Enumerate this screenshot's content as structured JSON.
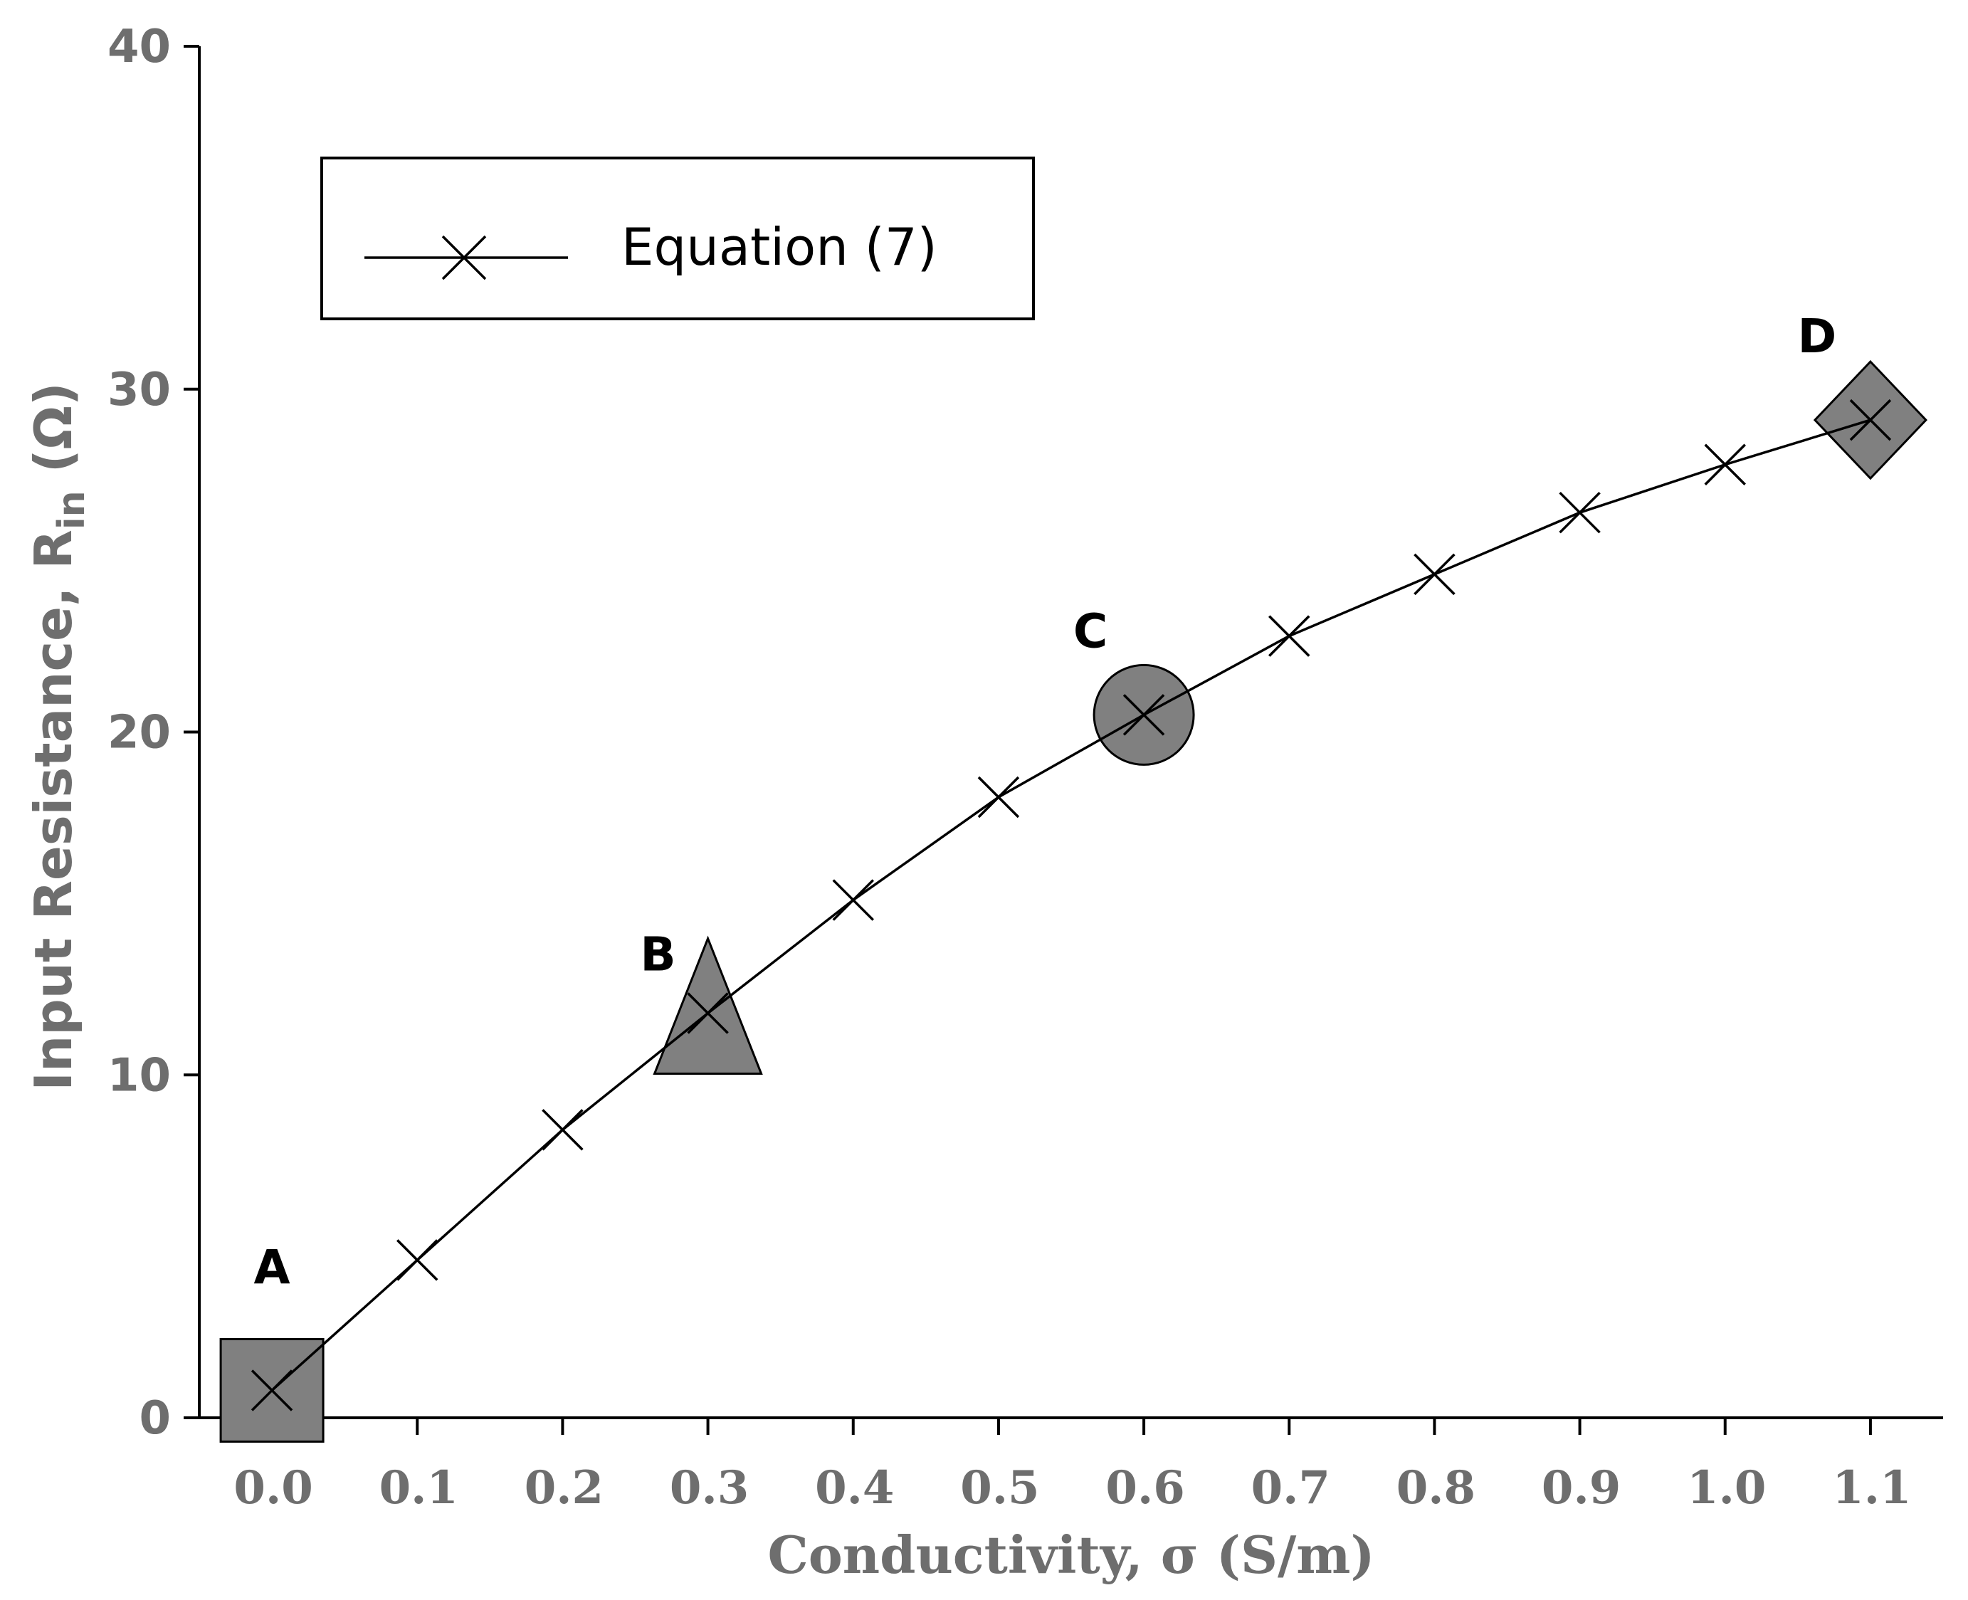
{
  "chart_data": {
    "type": "line",
    "title": "",
    "xlabel": "Conductivity, σ (S/m)",
    "ylabel": {
      "main": "Input Resistance, R",
      "subscript": "in",
      "unit": " (Ω)"
    },
    "xlim": [
      -0.05,
      1.15
    ],
    "ylim": [
      0,
      40
    ],
    "x_ticks": [
      "0.0",
      "0.1",
      "0.2",
      "0.3",
      "0.4",
      "0.5",
      "0.6",
      "0.7",
      "0.8",
      "0.9",
      "1.0",
      "1.1"
    ],
    "y_ticks": [
      "0",
      "10",
      "20",
      "30",
      "40"
    ],
    "grid": false,
    "legend_position": "top-left",
    "series": [
      {
        "name": "Equation (7)",
        "marker": "x",
        "color": "#000000",
        "x": [
          0.0,
          0.1,
          0.2,
          0.3,
          0.4,
          0.5,
          0.6,
          0.7,
          0.8,
          0.9,
          1.0,
          1.1
        ],
        "y": [
          0.8,
          4.6,
          8.4,
          11.8,
          15.1,
          18.1,
          20.5,
          22.8,
          24.6,
          26.4,
          27.8,
          29.1
        ]
      }
    ],
    "highlighted_points": [
      {
        "label": "A",
        "shape": "square",
        "x": 0.0,
        "y": 0.8,
        "color": "#808080"
      },
      {
        "label": "B",
        "shape": "triangle",
        "x": 0.3,
        "y": 11.8,
        "color": "#808080"
      },
      {
        "label": "C",
        "shape": "circle",
        "x": 0.6,
        "y": 20.5,
        "color": "#808080"
      },
      {
        "label": "D",
        "shape": "diamond",
        "x": 1.1,
        "y": 29.1,
        "color": "#808080"
      }
    ]
  }
}
